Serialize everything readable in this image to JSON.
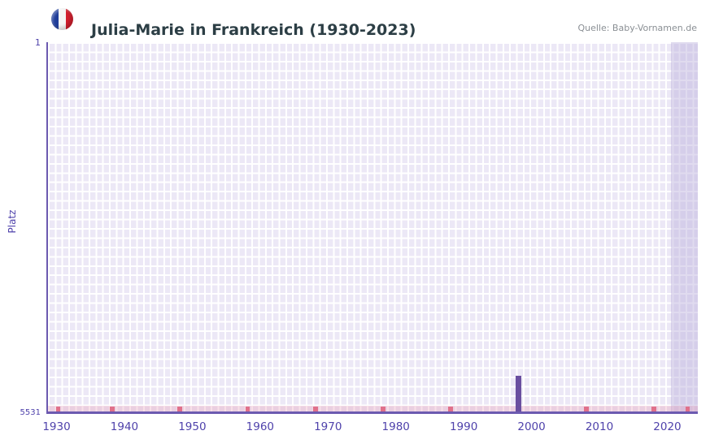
{
  "header": {
    "flag_icon": "france-flag-icon"
  },
  "chart_data": {
    "type": "bar",
    "title": "Julia-Marie in Frankreich (1930-2023)",
    "source": "Quelle: Baby-Vornamen.de",
    "ylabel": "Platz",
    "y_axis": {
      "top_label": "1",
      "bottom_label": "5531",
      "min": 1,
      "max": 5531,
      "inverted": true
    },
    "x_axis": {
      "min": 1929,
      "max": 2024,
      "ticks": [
        1930,
        1940,
        1950,
        1960,
        1970,
        1980,
        1990,
        2000,
        2010,
        2020
      ]
    },
    "ranked": [
      {
        "year": 1998,
        "rank": 4990
      }
    ],
    "unranked_marker_years": [
      1930,
      1938,
      1948,
      1958,
      1968,
      1978,
      1988,
      1998,
      2008,
      2018,
      2023
    ],
    "recent_band": {
      "start_year": 2021
    },
    "grid": true,
    "legend": "none",
    "colors": {
      "plot_bg": "#ece8f6",
      "grid": "#ffffff",
      "bar": "#6a4fa0",
      "marker": "#e0708a",
      "strip": "rgba(231,143,170,0.28)",
      "axis": "#6c5ab0",
      "band": "rgba(186,175,220,0.45)",
      "tick": "#4f42ab",
      "title_color": "#2c3e45",
      "source_color": "#8a8f94",
      "flag_blue": "#1f3d99",
      "flag_red": "#d21f2e"
    }
  }
}
